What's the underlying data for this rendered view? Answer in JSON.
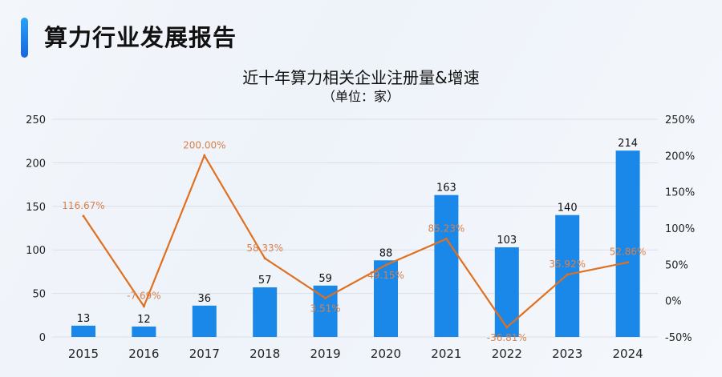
{
  "header": {
    "title": "算力行业发展报告"
  },
  "chart_data": {
    "type": "bar+line",
    "title": "近十年算力相关企业注册量&增速",
    "subtitle": "（单位：家）",
    "categories": [
      "2015",
      "2016",
      "2017",
      "2018",
      "2019",
      "2020",
      "2021",
      "2022",
      "2023",
      "2024"
    ],
    "series": [
      {
        "type": "bar",
        "axis": "left",
        "values": [
          13,
          12,
          36,
          57,
          59,
          88,
          163,
          103,
          140,
          214
        ],
        "labels": [
          "13",
          "12",
          "36",
          "57",
          "59",
          "88",
          "163",
          "103",
          "140",
          "214"
        ],
        "color": "#1a88e8"
      },
      {
        "type": "line",
        "axis": "right",
        "values": [
          116.67,
          -7.69,
          200.0,
          58.33,
          3.51,
          49.15,
          85.23,
          -36.81,
          35.92,
          52.86
        ],
        "labels": [
          "116.67%",
          "-7.69%",
          "200.00%",
          "58.33%",
          "3.51%",
          "49.15%",
          "85.23%",
          "-36.81%",
          "35.92%",
          "52.86%"
        ],
        "color": "#e0701f"
      }
    ],
    "y_left": {
      "range": [
        0,
        250
      ],
      "ticks": [
        "0",
        "50",
        "100",
        "150",
        "200",
        "250"
      ]
    },
    "y_right": {
      "range": [
        -50,
        250
      ],
      "ticks": [
        "-50%",
        "0%",
        "50%",
        "100%",
        "150%",
        "200%",
        "250%"
      ]
    },
    "grid": true
  }
}
